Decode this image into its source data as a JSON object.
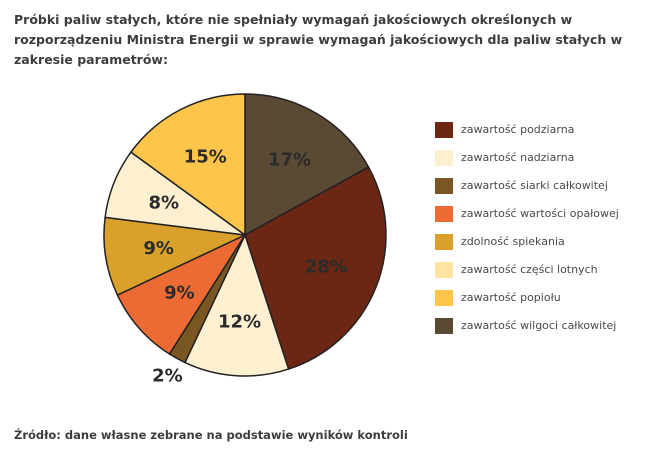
{
  "chart_data": {
    "type": "pie",
    "title": "Próbki paliw stałych, które nie spełniały wymagań jakościowych określonych w rozporządzeniu Ministra Energii w sprawie wymagań jakościowych dla paliw stałych w zakresie parametrów:",
    "legend_position": "right",
    "slices": [
      {
        "label": "zawartość wilgoci całkowitej",
        "value": 17,
        "display": "17%",
        "color": "#5b4a33",
        "label_color": "#2b2b2b"
      },
      {
        "label": "zawartość podziarna",
        "value": 28,
        "display": "28%",
        "color": "#6b2714",
        "label_color": "#2b2b2b"
      },
      {
        "label": "zawartość nadziarna",
        "value": 12,
        "display": "12%",
        "color": "#fdf0d0",
        "label_color": "#2b2b2b"
      },
      {
        "label": "zawartość siarki całkowitej",
        "value": 2,
        "display": "2%",
        "color": "#7a5623",
        "label_color": "#2b2b2b",
        "label_outside": true
      },
      {
        "label": "zawartość wartości opałowej",
        "value": 9,
        "display": "9%",
        "color": "#ec6b35",
        "label_color": "#2b2b2b"
      },
      {
        "label": "zdolność spiekania",
        "value": 9,
        "display": "9%",
        "color": "#d9a12c",
        "label_color": "#2b2b2b"
      },
      {
        "label": "zawartość części lotnych",
        "value": 8,
        "display": "8%",
        "color": "#fdf0d0",
        "label_color": "#2b2b2b"
      },
      {
        "label": "zawartość popiołu",
        "value": 15,
        "display": "15%",
        "color": "#fdc549",
        "label_color": "#2b2b2b"
      }
    ],
    "legend": [
      {
        "label": "zawartość podziarna",
        "color": "#6b2714"
      },
      {
        "label": "zawartość nadziarna",
        "color": "#fdf0d0"
      },
      {
        "label": "zawartość siarki całkowitej",
        "color": "#7a5623"
      },
      {
        "label": "zawartość wartości opałowej",
        "color": "#ec6b35"
      },
      {
        "label": "zdolność spiekania",
        "color": "#d9a12c"
      },
      {
        "label": "zawartość części lotnych",
        "color": "#fde4a3"
      },
      {
        "label": "zawartość popiołu",
        "color": "#fdc549"
      },
      {
        "label": "zawartość wilgoci całkowitej",
        "color": "#5b4a33"
      }
    ]
  },
  "source": "Źródło: dane własne zebrane na podstawie wyników kontroli"
}
